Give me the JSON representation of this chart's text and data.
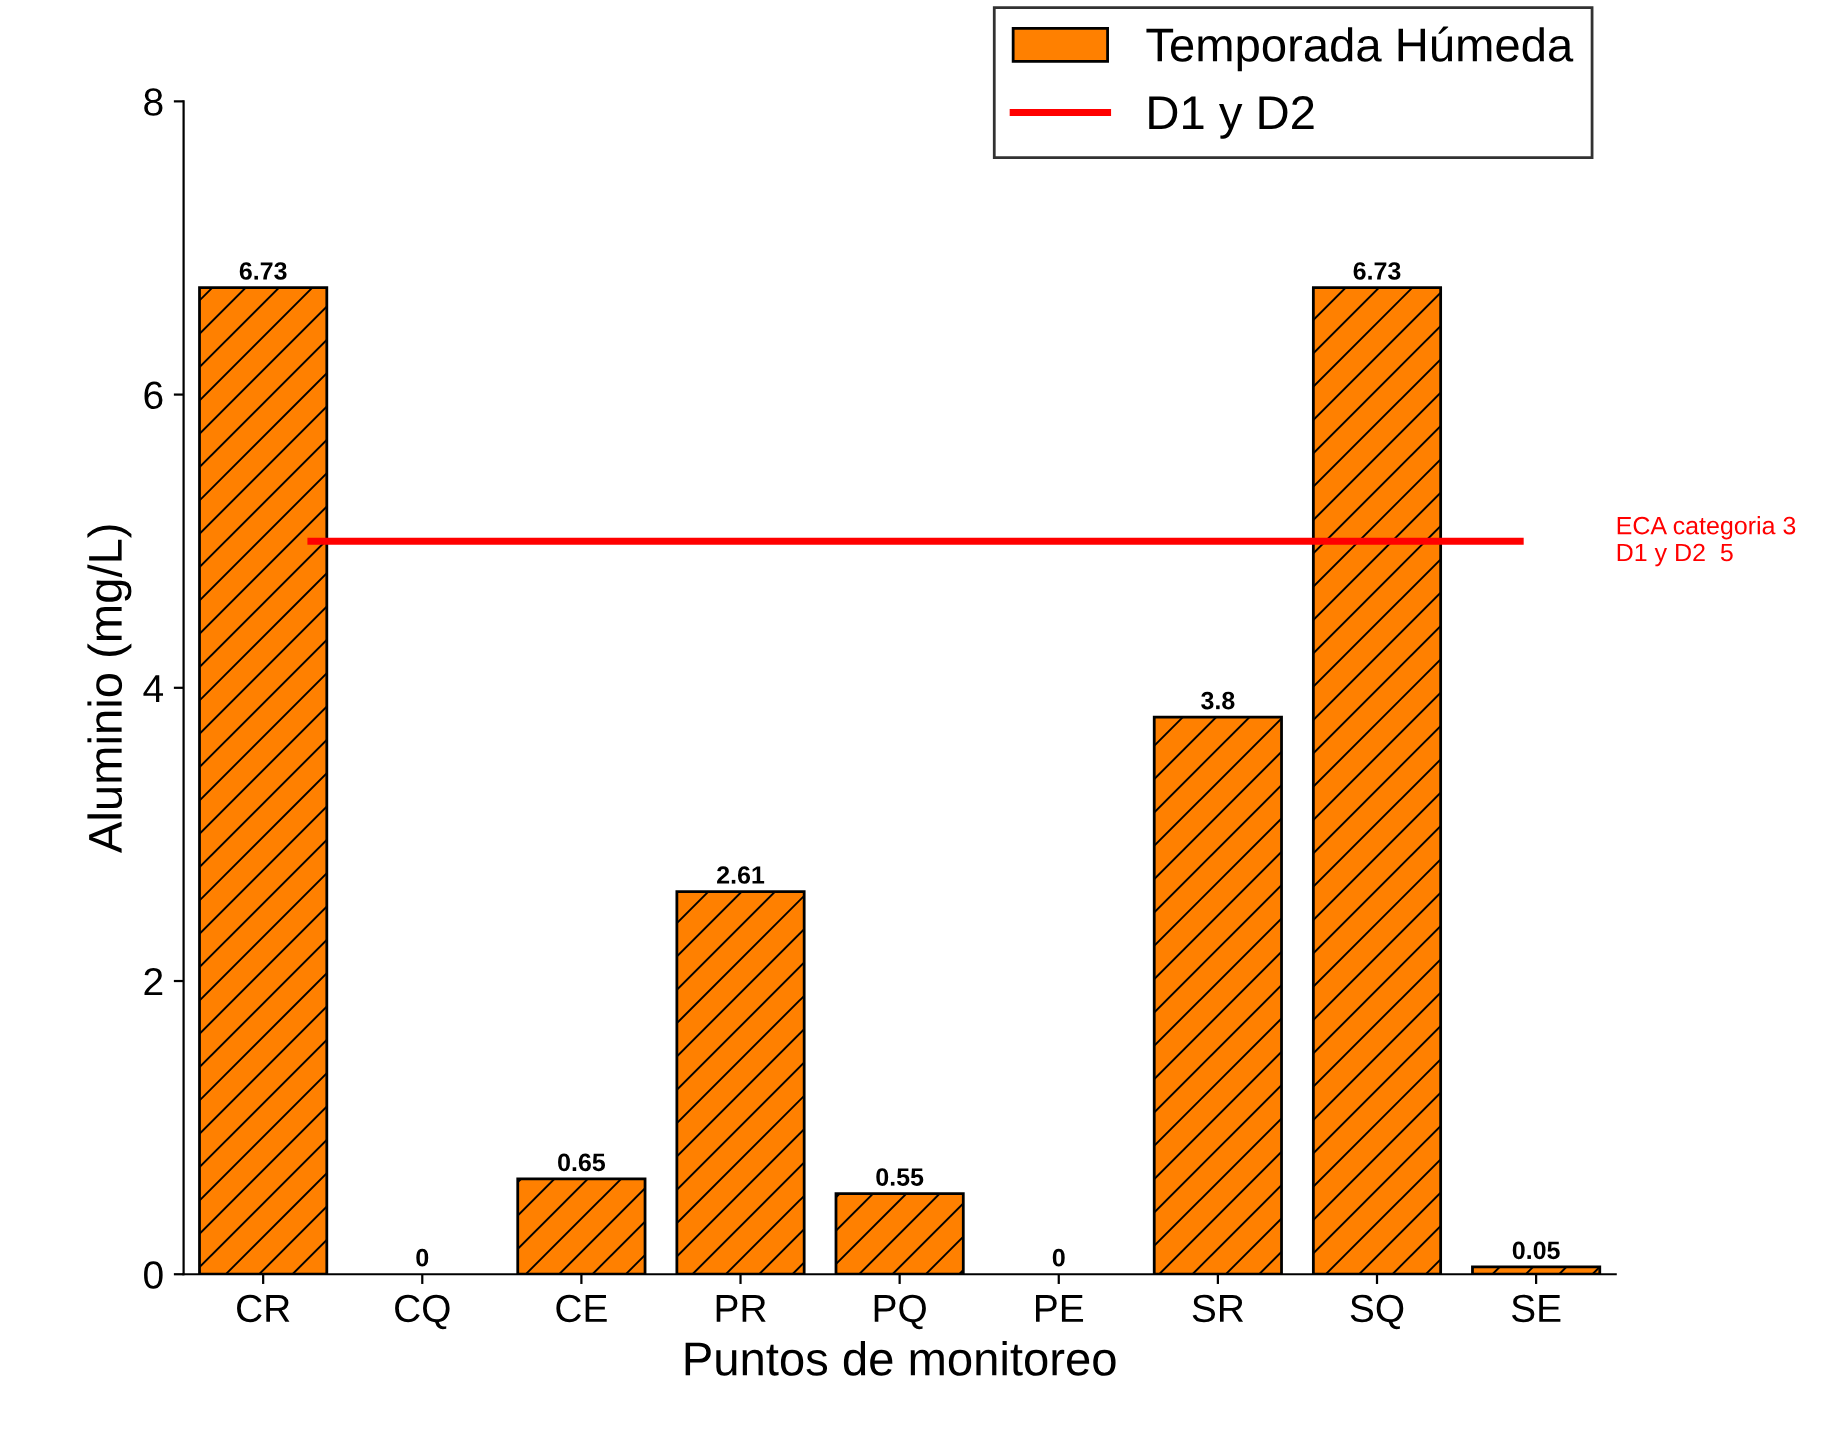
{
  "chart_data": {
    "type": "bar",
    "xlabel": "Puntos de monitoreo",
    "ylabel": "Aluminio (mg/L)",
    "categories": [
      "CR",
      "CQ",
      "CE",
      "PR",
      "PQ",
      "PE",
      "SR",
      "SQ",
      "SE"
    ],
    "series": [
      {
        "name": "Temporada Húmeda",
        "color": "#ff8000",
        "values": [
          6.73,
          0,
          0.65,
          2.61,
          0.55,
          0,
          3.8,
          6.73,
          0.05
        ]
      }
    ],
    "data_labels": true,
    "ylim": [
      0,
      8
    ],
    "yticks": [
      0,
      2,
      4,
      6,
      8
    ],
    "ref_lines": [
      {
        "axis": "y",
        "value": 5,
        "label": "D1 y D2",
        "color": "#ff0000"
      }
    ],
    "annotations": [
      "ECA categoria 3\nD1 y D2  5"
    ],
    "legend": "top right",
    "grid": false
  }
}
